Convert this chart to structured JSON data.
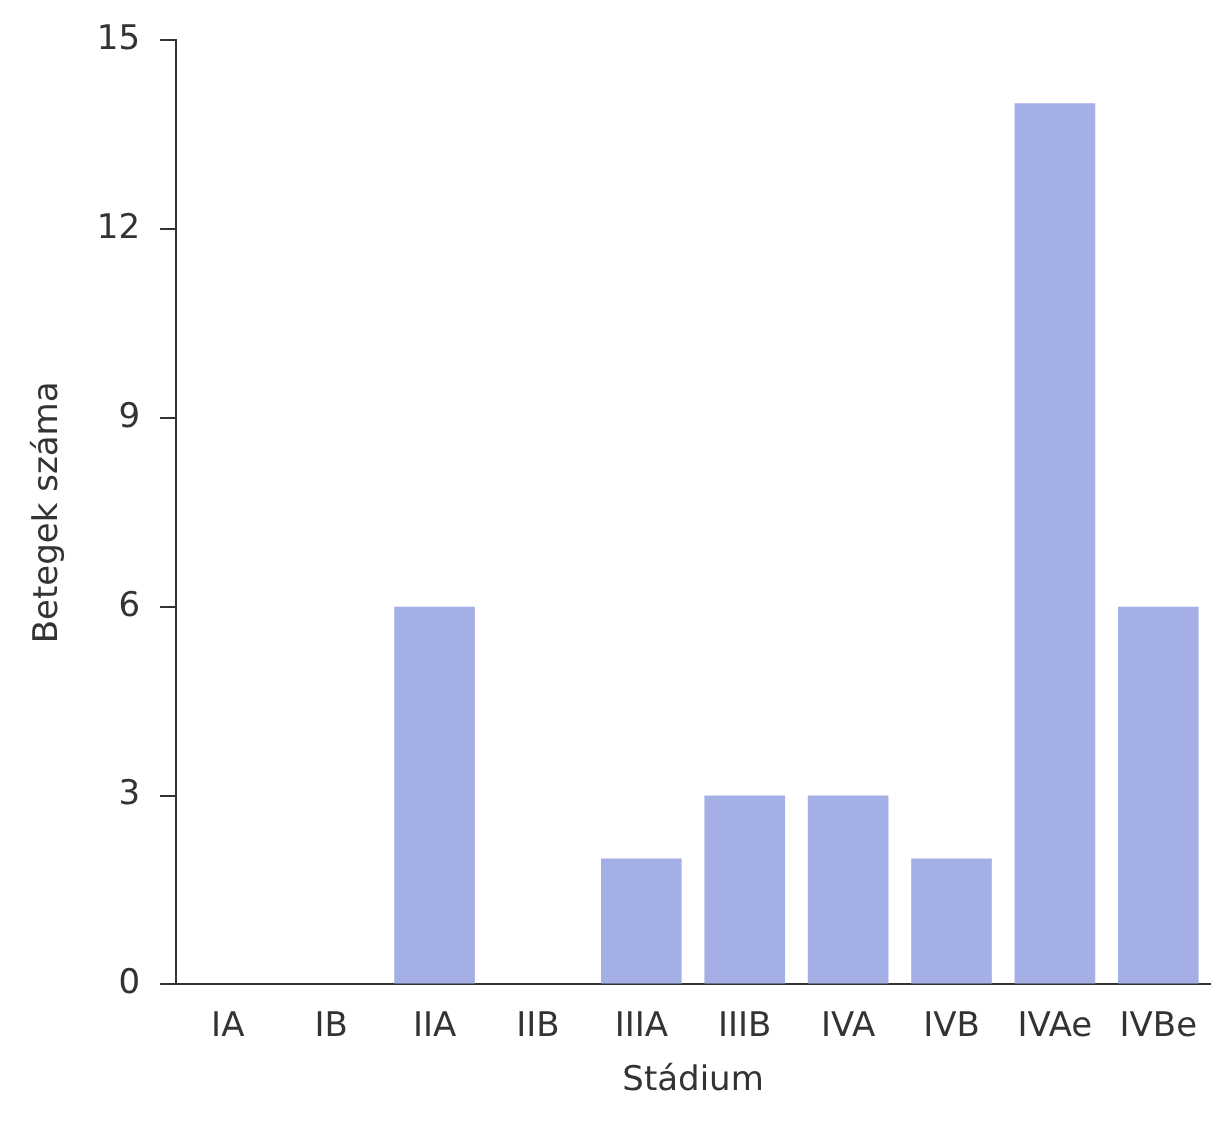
{
  "chart_data": {
    "type": "bar",
    "xlabel": "Stádium",
    "ylabel": "Betegek száma",
    "categories": [
      "IA",
      "IB",
      "IIA",
      "IIB",
      "IIIA",
      "IIIB",
      "IVA",
      "IVB",
      "IVAe",
      "IVBe"
    ],
    "values": [
      0,
      0,
      6,
      0,
      2,
      3,
      3,
      2,
      14,
      6
    ],
    "color": "#a4afe6",
    "ylim": [
      0,
      15
    ],
    "yticks": [
      0,
      3,
      6,
      9,
      12,
      15
    ],
    "grid": false,
    "legend": false
  }
}
